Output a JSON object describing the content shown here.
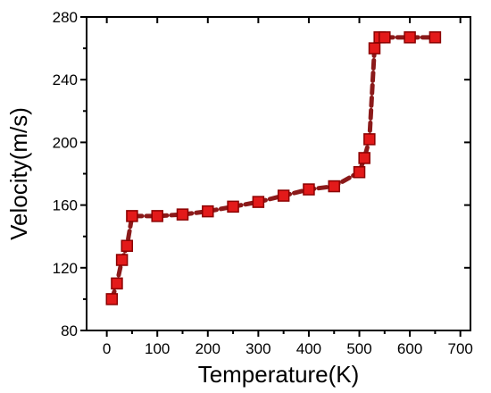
{
  "chart_data": {
    "type": "line",
    "title": "",
    "xlabel": "Temperature(K)",
    "ylabel": "Velocity(m/s)",
    "xlim": [
      -40,
      720
    ],
    "ylim": [
      80,
      280
    ],
    "xticks": [
      0,
      100,
      200,
      300,
      400,
      500,
      600,
      700
    ],
    "yticks": [
      80,
      120,
      160,
      200,
      240,
      280
    ],
    "grid": false,
    "legend": "none",
    "series": [
      {
        "color": "#e31a1a",
        "line_color": "#8b1a1a",
        "marker": "square",
        "line_style": "dashed",
        "x": [
          10,
          20,
          30,
          40,
          50,
          100,
          150,
          200,
          250,
          300,
          350,
          400,
          450,
          500,
          510,
          520,
          530,
          540,
          550,
          600,
          650
        ],
        "y": [
          100,
          110,
          125,
          134,
          153,
          153,
          154,
          156,
          159,
          162,
          166,
          170,
          172,
          181,
          190,
          202,
          260,
          267,
          267,
          267,
          267
        ]
      }
    ]
  }
}
